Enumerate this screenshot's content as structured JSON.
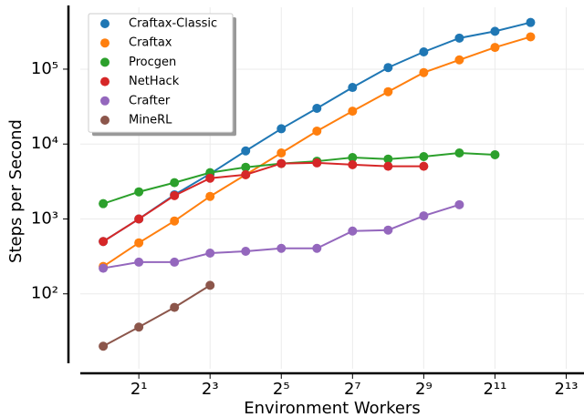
{
  "chart_data": {
    "type": "line",
    "x_label": "Environment Workers",
    "y_label": "Steps per Second",
    "x": [
      1,
      2,
      4,
      8,
      16,
      32,
      64,
      128,
      256,
      512,
      1024,
      2048,
      4096
    ],
    "series": [
      {
        "name": "Craftax-Classic",
        "color": "#1f77b4",
        "values": [
          500,
          1000,
          2100,
          4000,
          8100,
          16000,
          30000,
          57000,
          105000,
          170000,
          260000,
          320000,
          420000
        ]
      },
      {
        "name": "Craftax",
        "color": "#ff7f0e",
        "values": [
          232,
          480,
          940,
          2000,
          3900,
          7600,
          14900,
          27500,
          50000,
          90000,
          133000,
          195000,
          270000
        ]
      },
      {
        "name": "Procgen",
        "color": "#2ca02c",
        "values": [
          1600,
          2300,
          3050,
          4150,
          4900,
          5500,
          5900,
          6600,
          6300,
          6800,
          7600,
          7200,
          null
        ]
      },
      {
        "name": "NetHack",
        "color": "#d62728",
        "values": [
          500,
          1000,
          2050,
          3500,
          3900,
          5500,
          5600,
          5300,
          5050,
          5050,
          null,
          null,
          null
        ]
      },
      {
        "name": "Crafter",
        "color": "#9467bd",
        "values": [
          220,
          265,
          265,
          350,
          370,
          405,
          405,
          690,
          710,
          1100,
          1550,
          null,
          null
        ]
      },
      {
        "name": "MineRL",
        "color": "#8c564b",
        "values": [
          20,
          36,
          66,
          130,
          null,
          null,
          null,
          null,
          null,
          null,
          null,
          null,
          null
        ]
      }
    ],
    "x_scale": "log",
    "y_scale": "log",
    "xlim": [
      0.64,
      11585
    ],
    "ylim": [
      10,
      670000
    ],
    "xticks": [
      {
        "value": 2,
        "label": "2¹"
      },
      {
        "value": 8,
        "label": "2³"
      },
      {
        "value": 32,
        "label": "2⁵"
      },
      {
        "value": 128,
        "label": "2⁷"
      },
      {
        "value": 512,
        "label": "2⁹"
      },
      {
        "value": 2048,
        "label": "2¹¹"
      },
      {
        "value": 8192,
        "label": "2¹³"
      }
    ],
    "yticks": [
      {
        "value": 100,
        "label": "10²"
      },
      {
        "value": 1000,
        "label": "10³"
      },
      {
        "value": 10000,
        "label": "10⁴"
      },
      {
        "value": 100000,
        "label": "10⁵"
      }
    ],
    "grid": true,
    "legend": "upper-left"
  }
}
